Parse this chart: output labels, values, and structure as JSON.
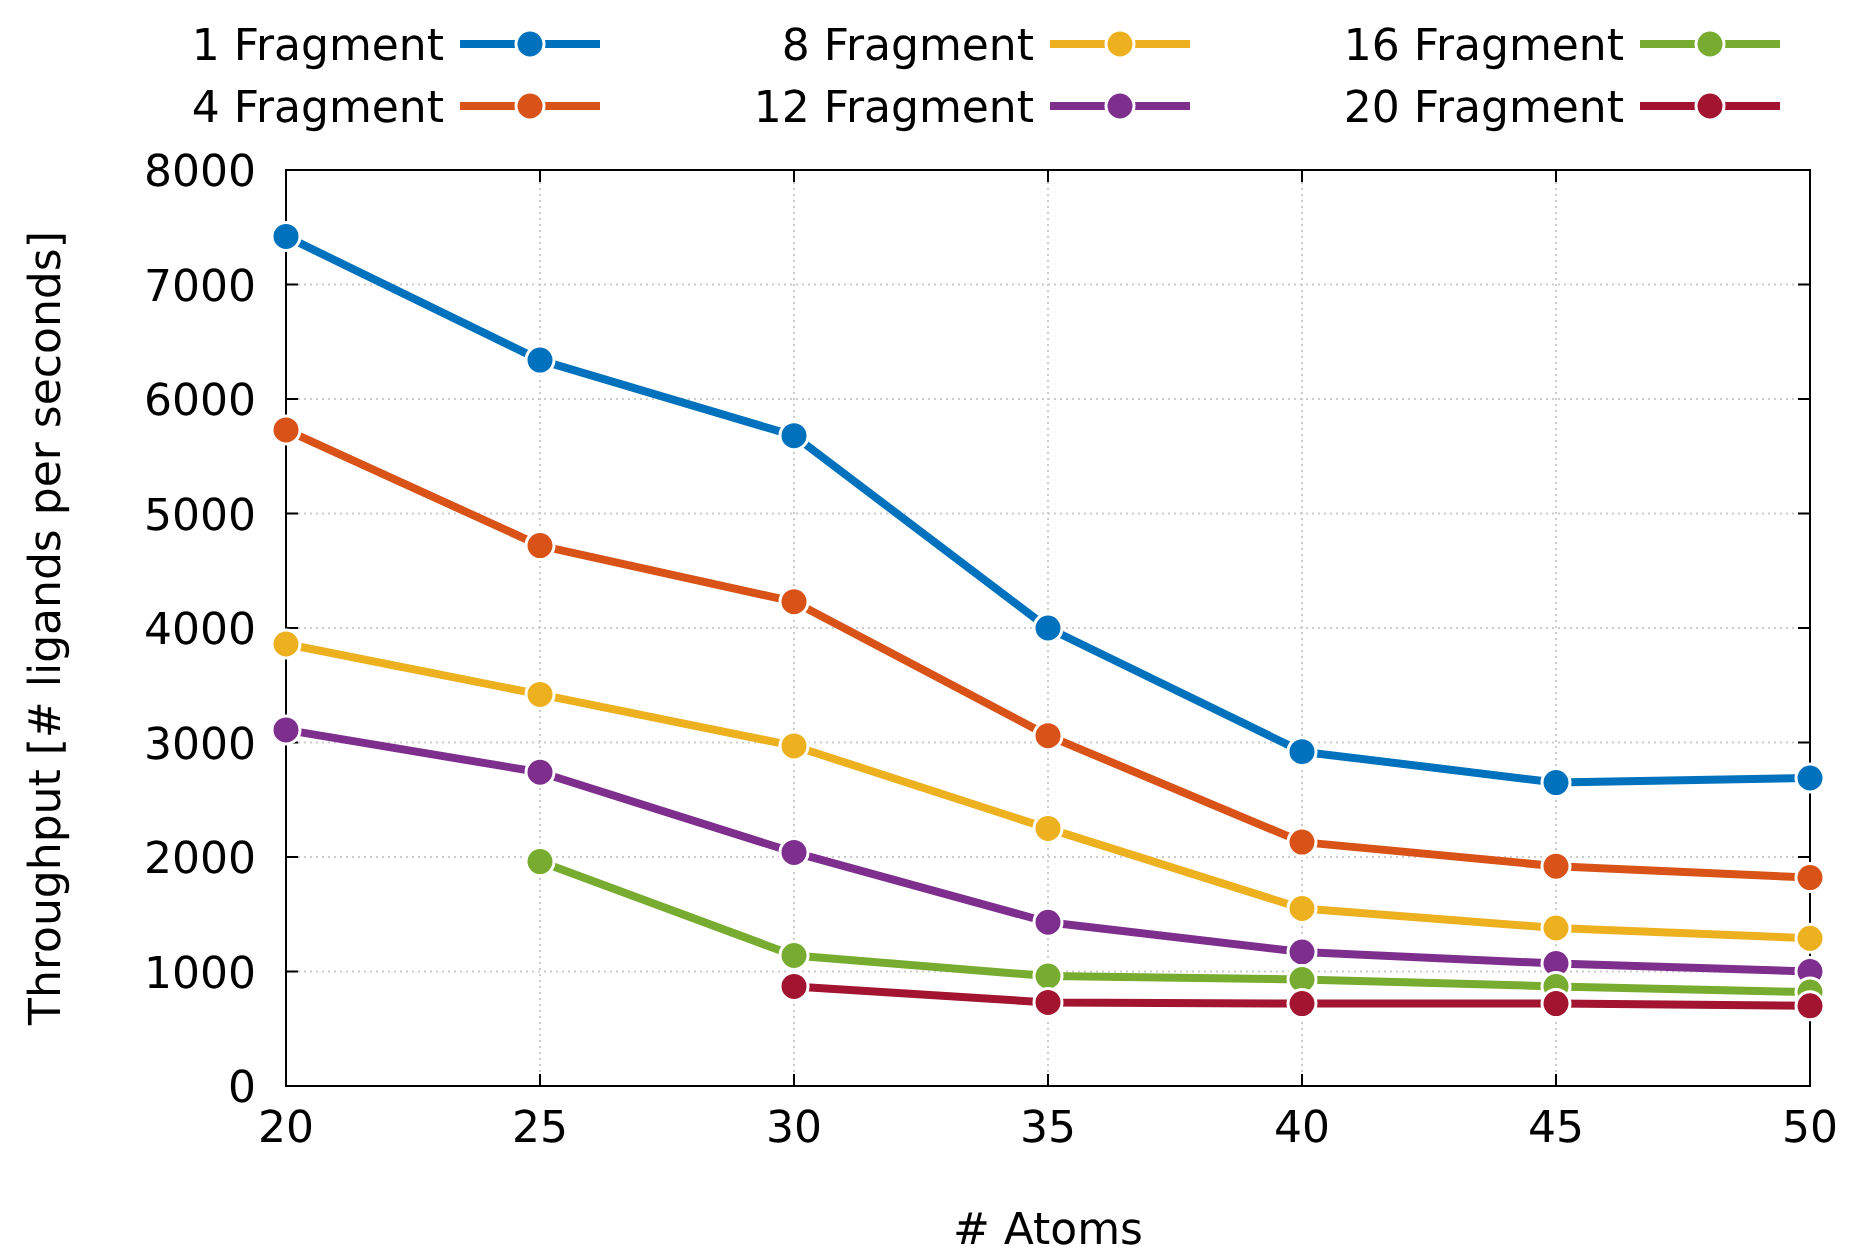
{
  "chart_data": {
    "type": "line",
    "xlabel": "# Atoms",
    "ylabel": "Throughput [# ligands per seconds]",
    "x": [
      20,
      25,
      30,
      35,
      40,
      45,
      50
    ],
    "xlim": [
      20,
      50
    ],
    "xticks": [
      20,
      25,
      30,
      35,
      40,
      45,
      50
    ],
    "ylim": [
      0,
      8000
    ],
    "yticks": [
      0,
      1000,
      2000,
      3000,
      4000,
      5000,
      6000,
      7000,
      8000
    ],
    "grid": true,
    "legend": "top",
    "marker": "circle",
    "line_style": "solid",
    "series": [
      {
        "name": "1 Fragment",
        "color": "#0072bd",
        "values": [
          7420,
          6340,
          5680,
          4000,
          2920,
          2650,
          2690
        ]
      },
      {
        "name": "4 Fragment",
        "color": "#d95319",
        "values": [
          5730,
          4720,
          4230,
          3060,
          2130,
          1920,
          1820
        ]
      },
      {
        "name": "8 Fragment",
        "color": "#edb120",
        "values": [
          3860,
          3420,
          2970,
          2250,
          1550,
          1380,
          1290
        ]
      },
      {
        "name": "12 Fragment",
        "color": "#7e2f8e",
        "values": [
          3110,
          2740,
          2040,
          1430,
          1170,
          1070,
          1000
        ]
      },
      {
        "name": "16 Fragment",
        "color": "#77ac30",
        "values": [
          null,
          1960,
          1140,
          960,
          930,
          870,
          820
        ]
      },
      {
        "name": "20 Fragment",
        "color": "#a2142f",
        "values": [
          null,
          null,
          870,
          730,
          720,
          720,
          700
        ]
      }
    ]
  }
}
